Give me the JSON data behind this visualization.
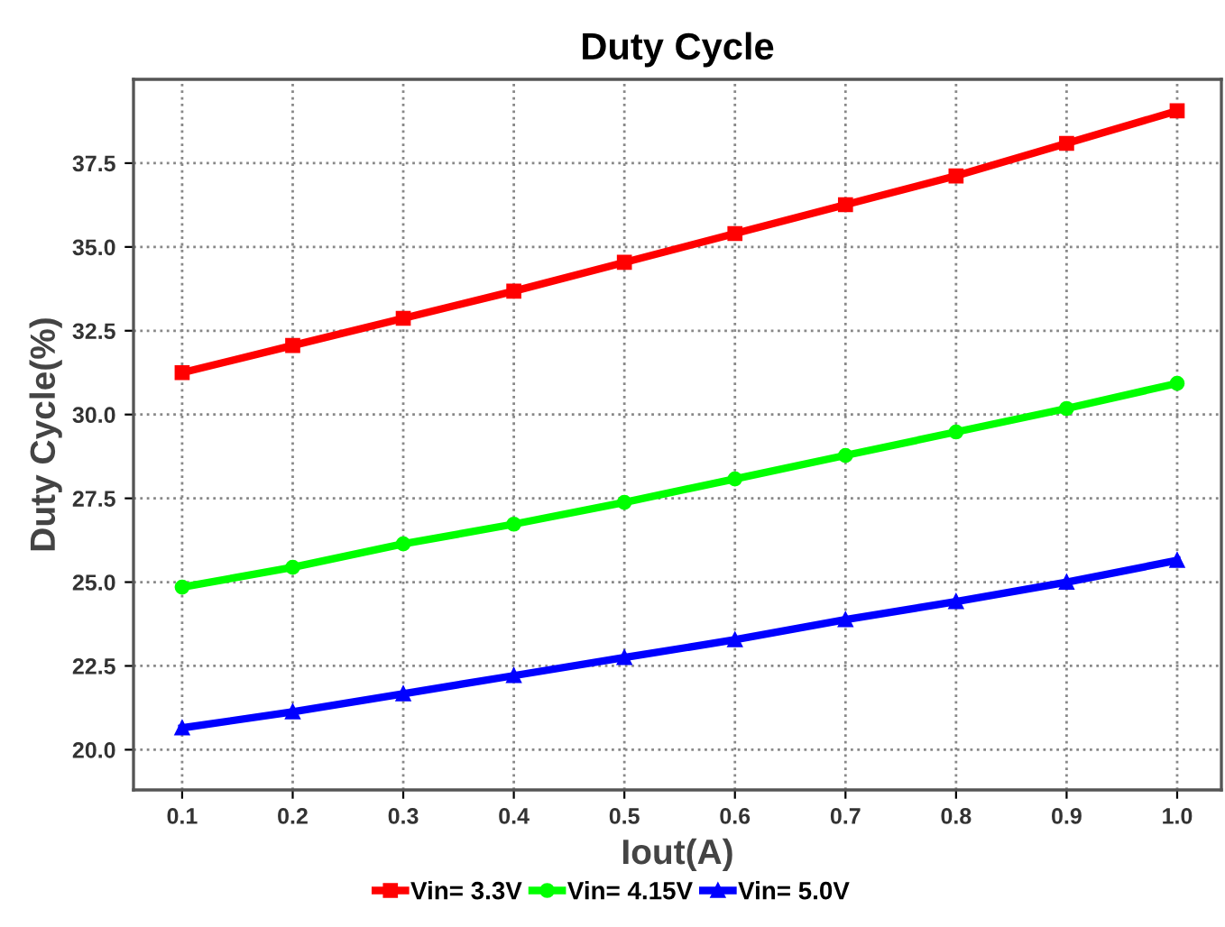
{
  "chart_data": {
    "type": "line",
    "title": "Duty Cycle",
    "xlabel": "Iout(A)",
    "ylabel": "Duty Cycle(%)",
    "x": [
      0.1,
      0.2,
      0.3,
      0.4,
      0.5,
      0.6,
      0.7,
      0.8,
      0.9,
      1.0
    ],
    "series": [
      {
        "name": "Vin= 3.3V",
        "color": "#ff0000",
        "marker": "square",
        "values": [
          31.25,
          32.06,
          32.87,
          33.68,
          34.54,
          35.4,
          36.26,
          37.12,
          38.09,
          39.06
        ]
      },
      {
        "name": "Vin= 4.15V",
        "color": "#00ff00",
        "marker": "circle",
        "values": [
          24.85,
          25.44,
          26.14,
          26.73,
          27.38,
          28.08,
          28.78,
          29.48,
          30.18,
          30.93
        ]
      },
      {
        "name": "Vin= 5.0V",
        "color": "#0000ff",
        "marker": "triangle",
        "values": [
          20.65,
          21.13,
          21.67,
          22.21,
          22.75,
          23.28,
          23.88,
          24.42,
          25.0,
          25.65
        ]
      }
    ],
    "xlim": [
      0.056,
      1.04
    ],
    "ylim": [
      18.8,
      40.0
    ],
    "xticks": [
      {
        "value": 0.1,
        "label": "0.1"
      },
      {
        "value": 0.2,
        "label": "0.2"
      },
      {
        "value": 0.3,
        "label": "0.3"
      },
      {
        "value": 0.4,
        "label": "0.4"
      },
      {
        "value": 0.5,
        "label": "0.5"
      },
      {
        "value": 0.6,
        "label": "0.6"
      },
      {
        "value": 0.7,
        "label": "0.7"
      },
      {
        "value": 0.8,
        "label": "0.8"
      },
      {
        "value": 0.9,
        "label": "0.9"
      },
      {
        "value": 1.0,
        "label": "1.0"
      }
    ],
    "yticks": [
      {
        "value": 20,
        "label": "20.0"
      },
      {
        "value": 22.5,
        "label": "22.5"
      },
      {
        "value": 25,
        "label": "25.0"
      },
      {
        "value": 27.5,
        "label": "27.5"
      },
      {
        "value": 30,
        "label": "30.0"
      },
      {
        "value": 32.5,
        "label": "32.5"
      },
      {
        "value": 35,
        "label": "35.0"
      },
      {
        "value": 37.5,
        "label": "37.5"
      }
    ],
    "grid": true,
    "legend": "bottom",
    "line_style": "solid"
  }
}
